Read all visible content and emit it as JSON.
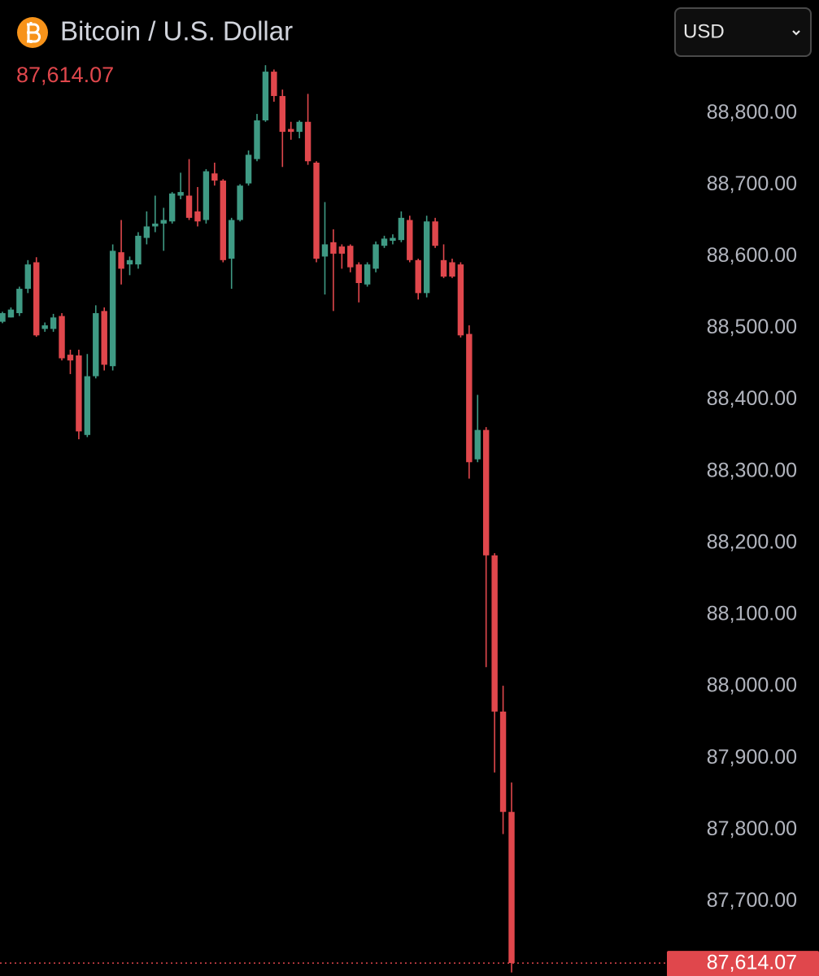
{
  "title": "Bitcoin / U.S. Dollar",
  "currency": "USD",
  "chart_data": {
    "type": "candlestick",
    "up_color": "#3f9a84",
    "down_color": "#e0474c",
    "grid": false,
    "current_price": {
      "value": 87614.07,
      "label": "87,614.07"
    },
    "ylim": [
      87596,
      88958
    ],
    "yticks": [
      {
        "value": 87700,
        "label": "87,700.00"
      },
      {
        "value": 87800,
        "label": "87,800.00"
      },
      {
        "value": 87900,
        "label": "87,900.00"
      },
      {
        "value": 88000,
        "label": "88,000.00"
      },
      {
        "value": 88100,
        "label": "88,100.00"
      },
      {
        "value": 88200,
        "label": "88,200.00"
      },
      {
        "value": 88300,
        "label": "88,300.00"
      },
      {
        "value": 88400,
        "label": "88,400.00"
      },
      {
        "value": 88500,
        "label": "88,500.00"
      },
      {
        "value": 88600,
        "label": "88,600.00"
      },
      {
        "value": 88700,
        "label": "88,700.00"
      },
      {
        "value": 88800,
        "label": "88,800.00"
      }
    ],
    "open": [
      88509,
      88515,
      88521,
      88555,
      88592,
      88499,
      88499,
      88517,
      88463,
      88462,
      88351,
      88433,
      88524,
      88447,
      88606,
      88589,
      88589,
      88626,
      88642,
      88646,
      88649,
      88685,
      88685,
      88663,
      88651,
      88716,
      88706,
      88597,
      88651,
      88702,
      88736,
      88790,
      88858,
      88824,
      88778,
      88774,
      88788,
      88731,
      88600,
      88620,
      88614,
      88615,
      88589,
      88561,
      88583,
      88615,
      88622,
      88623,
      88651,
      88595,
      88549,
      88649,
      88595,
      88592,
      88589,
      88492,
      88317,
      88358,
      88183,
      87965,
      87825
    ],
    "high": [
      88523,
      88529,
      88558,
      88595,
      88599,
      88508,
      88520,
      88521,
      88470,
      88470,
      88464,
      88532,
      88529,
      88617,
      88651,
      88600,
      88634,
      88663,
      88685,
      88668,
      88690,
      88717,
      88736,
      88697,
      88722,
      88731,
      88708,
      88654,
      88701,
      88748,
      88799,
      88867,
      88861,
      88833,
      88788,
      88790,
      88827,
      88733,
      88676,
      88638,
      88617,
      88617,
      88592,
      88592,
      88621,
      88629,
      88631,
      88663,
      88657,
      88597,
      88657,
      88654,
      88617,
      88597,
      88592,
      88504,
      88407,
      88362,
      88186,
      88001,
      87866
    ],
    "low": [
      88507,
      88515,
      88517,
      88549,
      88488,
      88495,
      88495,
      88455,
      88436,
      88345,
      88348,
      88430,
      88441,
      88441,
      88561,
      88574,
      88583,
      88617,
      88634,
      88608,
      88646,
      88680,
      88651,
      88642,
      88646,
      88699,
      88592,
      88555,
      88649,
      88699,
      88733,
      88788,
      88816,
      88725,
      88763,
      88765,
      88728,
      88592,
      88547,
      88524,
      88583,
      88578,
      88536,
      88558,
      88578,
      88612,
      88617,
      88620,
      88592,
      88540,
      88543,
      88612,
      88570,
      88570,
      88487,
      88290,
      88313,
      88027,
      87880,
      87794,
      87601
    ],
    "close": [
      88521,
      88526,
      88555,
      88589,
      88490,
      88504,
      88515,
      88458,
      88455,
      88356,
      88433,
      88521,
      88449,
      88608,
      88583,
      88595,
      88629,
      88642,
      88646,
      88651,
      88688,
      88690,
      88654,
      88649,
      88719,
      88706,
      88595,
      88651,
      88699,
      88742,
      88790,
      88858,
      88824,
      88774,
      88774,
      88788,
      88733,
      88597,
      88617,
      88604,
      88604,
      88585,
      88563,
      88589,
      88617,
      88625,
      88626,
      88654,
      88595,
      88549,
      88649,
      88615,
      88572,
      88572,
      88490,
      88313,
      88358,
      88183,
      87965,
      87825,
      87614.07
    ]
  }
}
